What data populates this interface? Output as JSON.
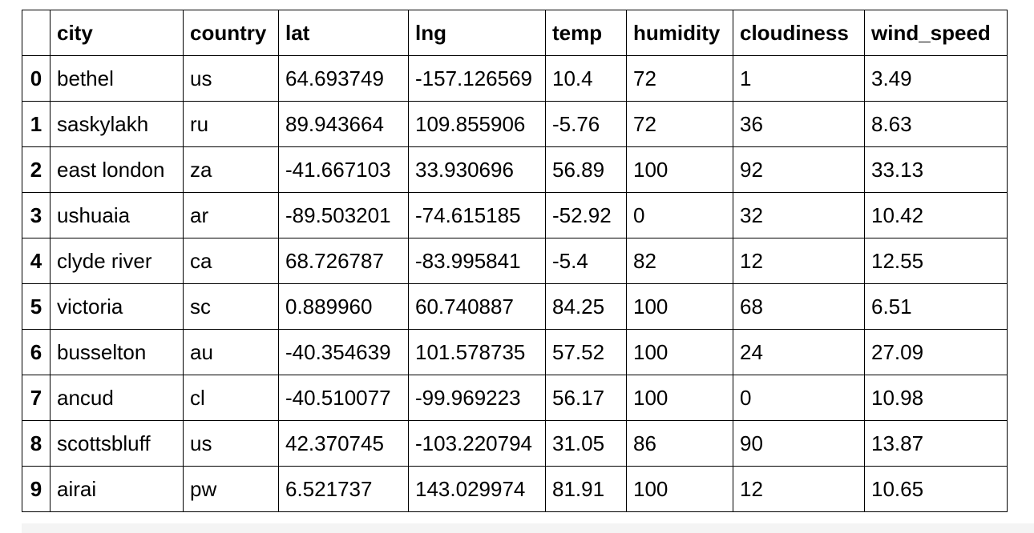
{
  "table": {
    "index_header": "",
    "columns": [
      "city",
      "country",
      "lat",
      "lng",
      "temp",
      "humidity",
      "cloudiness",
      "wind_speed"
    ],
    "rows": [
      {
        "index": "0",
        "cells": [
          "bethel",
          "us",
          "64.693749",
          "-157.126569",
          "10.4",
          "72",
          "1",
          "3.49"
        ]
      },
      {
        "index": "1",
        "cells": [
          "saskylakh",
          "ru",
          "89.943664",
          "109.855906",
          "-5.76",
          "72",
          "36",
          "8.63"
        ]
      },
      {
        "index": "2",
        "cells": [
          "east london",
          "za",
          "-41.667103",
          "33.930696",
          "56.89",
          "100",
          "92",
          "33.13"
        ]
      },
      {
        "index": "3",
        "cells": [
          "ushuaia",
          "ar",
          "-89.503201",
          "-74.615185",
          "-52.92",
          "0",
          "32",
          "10.42"
        ]
      },
      {
        "index": "4",
        "cells": [
          "clyde river",
          "ca",
          "68.726787",
          "-83.995841",
          "-5.4",
          "82",
          "12",
          "12.55"
        ]
      },
      {
        "index": "5",
        "cells": [
          "victoria",
          "sc",
          "0.889960",
          "60.740887",
          "84.25",
          "100",
          "68",
          "6.51"
        ]
      },
      {
        "index": "6",
        "cells": [
          "busselton",
          "au",
          "-40.354639",
          "101.578735",
          "57.52",
          "100",
          "24",
          "27.09"
        ]
      },
      {
        "index": "7",
        "cells": [
          "ancud",
          "cl",
          "-40.510077",
          "-99.969223",
          "56.17",
          "100",
          "0",
          "10.98"
        ]
      },
      {
        "index": "8",
        "cells": [
          "scottsbluff",
          "us",
          "42.370745",
          "-103.220794",
          "31.05",
          "86",
          "90",
          "13.87"
        ]
      },
      {
        "index": "9",
        "cells": [
          "airai",
          "pw",
          "6.521737",
          "143.029974",
          "81.91",
          "100",
          "12",
          "10.65"
        ]
      }
    ]
  }
}
